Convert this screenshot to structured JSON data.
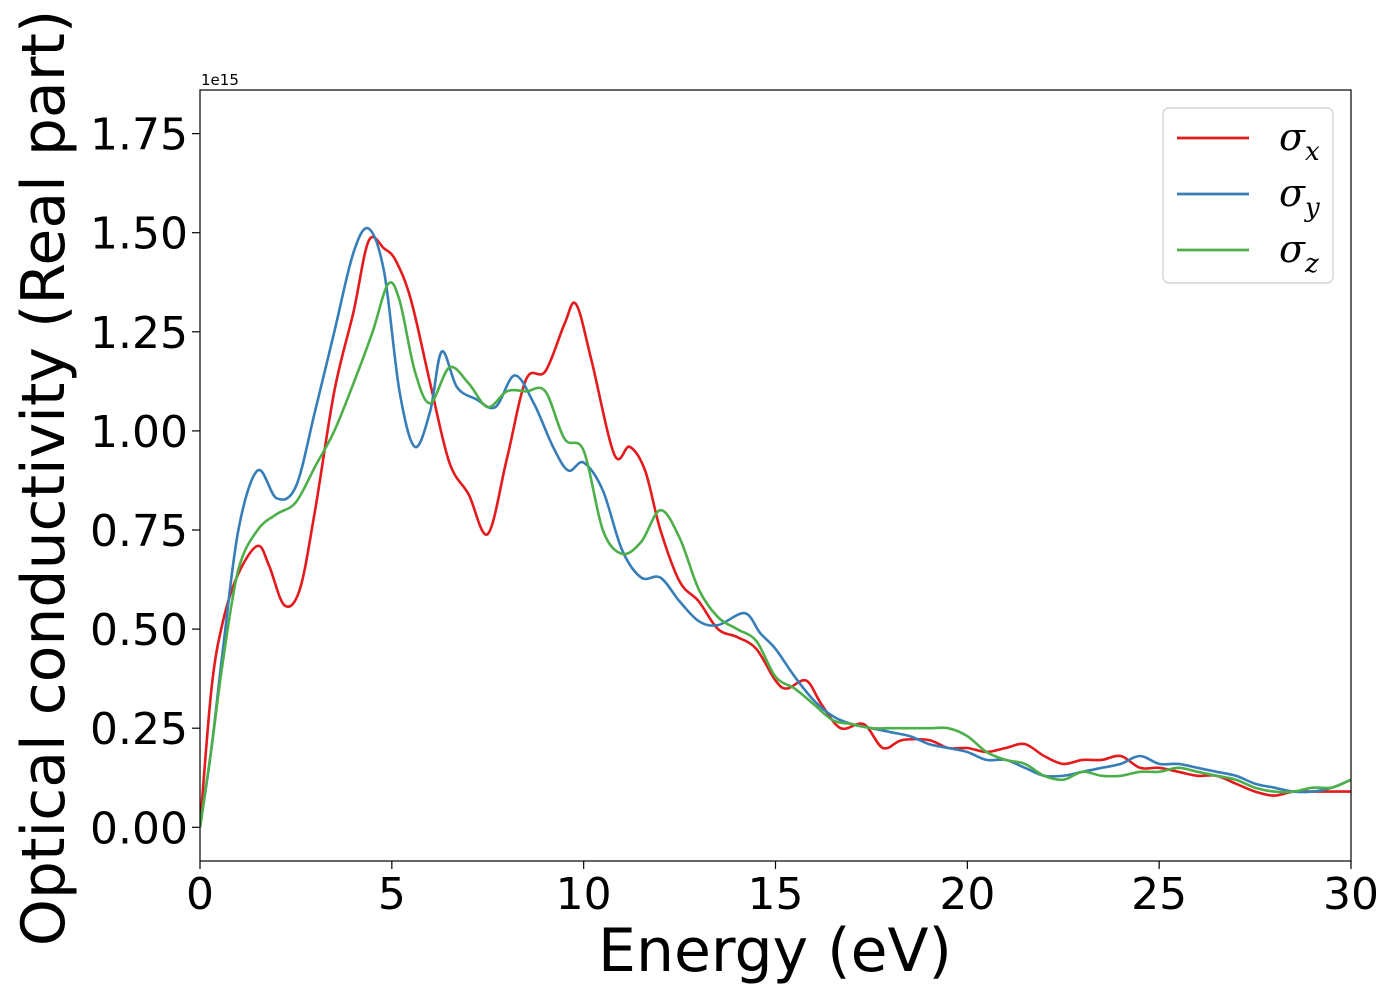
{
  "chart_data": {
    "type": "line",
    "title": "",
    "xlabel": "Energy (eV)",
    "ylabel": "Optical conductivity (Real part)",
    "y_offset_label": "1e15",
    "xlim": [
      0,
      30
    ],
    "ylim": [
      -0.085,
      1.86
    ],
    "xticks": [
      0,
      5,
      10,
      15,
      20,
      25,
      30
    ],
    "xtick_labels": [
      "0",
      "5",
      "10",
      "15",
      "20",
      "25",
      "30"
    ],
    "yticks": [
      0,
      0.25,
      0.5,
      0.75,
      1.0,
      1.25,
      1.5,
      1.75
    ],
    "ytick_labels": [
      "0.00",
      "0.25",
      "0.50",
      "0.75",
      "1.00",
      "1.25",
      "1.50",
      "1.75"
    ],
    "grid": false,
    "legend": "top-right",
    "series": [
      {
        "name": "σ",
        "subscript": "x",
        "color": "#e41a1c",
        "x": [
          0,
          0.3,
          0.6,
          1.0,
          1.5,
          1.8,
          2.2,
          2.6,
          3.0,
          3.5,
          4.0,
          4.4,
          4.8,
          5.1,
          5.5,
          6.0,
          6.5,
          7.0,
          7.5,
          8.0,
          8.5,
          9.0,
          9.5,
          9.8,
          10.2,
          10.8,
          11.2,
          11.6,
          12.0,
          12.5,
          13.0,
          13.5,
          14.0,
          14.5,
          15.0,
          15.3,
          15.8,
          16.2,
          16.7,
          17.3,
          17.8,
          18.3,
          19.0,
          19.5,
          20.0,
          20.5,
          21.0,
          21.5,
          22.0,
          22.5,
          23.0,
          23.5,
          24.0,
          24.5,
          25.0,
          25.5,
          26.0,
          26.5,
          27.0,
          27.5,
          28.0,
          28.5,
          29.0,
          29.5,
          30.0
        ],
        "y": [
          0.0,
          0.35,
          0.52,
          0.64,
          0.71,
          0.66,
          0.56,
          0.6,
          0.8,
          1.1,
          1.3,
          1.48,
          1.46,
          1.43,
          1.33,
          1.12,
          0.92,
          0.84,
          0.74,
          0.93,
          1.13,
          1.15,
          1.27,
          1.32,
          1.18,
          0.94,
          0.96,
          0.9,
          0.75,
          0.62,
          0.57,
          0.5,
          0.48,
          0.45,
          0.37,
          0.35,
          0.37,
          0.31,
          0.25,
          0.26,
          0.2,
          0.22,
          0.22,
          0.2,
          0.2,
          0.19,
          0.2,
          0.21,
          0.18,
          0.16,
          0.17,
          0.17,
          0.18,
          0.15,
          0.15,
          0.14,
          0.13,
          0.13,
          0.11,
          0.09,
          0.08,
          0.09,
          0.09,
          0.09,
          0.09
        ]
      },
      {
        "name": "σ",
        "subscript": "y",
        "color": "#377eb8",
        "x": [
          0,
          0.3,
          0.6,
          1.0,
          1.5,
          2.0,
          2.5,
          3.0,
          3.5,
          4.0,
          4.4,
          4.8,
          5.2,
          5.6,
          6.0,
          6.3,
          6.7,
          7.2,
          7.7,
          8.2,
          8.7,
          9.2,
          9.6,
          10.0,
          10.5,
          11.0,
          11.5,
          12.0,
          12.5,
          13.0,
          13.5,
          14.2,
          14.6,
          15.0,
          15.5,
          16.0,
          16.5,
          17.0,
          17.5,
          18.0,
          18.5,
          19.0,
          19.5,
          20.0,
          20.5,
          21.0,
          21.5,
          22.0,
          22.5,
          23.0,
          23.5,
          24.0,
          24.5,
          25.0,
          25.5,
          26.0,
          26.5,
          27.0,
          27.5,
          28.0,
          28.5,
          29.0,
          29.5,
          30.0
        ],
        "y": [
          0.0,
          0.2,
          0.45,
          0.75,
          0.9,
          0.83,
          0.86,
          1.05,
          1.25,
          1.45,
          1.51,
          1.4,
          1.1,
          0.96,
          1.05,
          1.2,
          1.11,
          1.08,
          1.06,
          1.14,
          1.07,
          0.96,
          0.9,
          0.92,
          0.85,
          0.7,
          0.63,
          0.63,
          0.57,
          0.52,
          0.51,
          0.54,
          0.49,
          0.45,
          0.38,
          0.32,
          0.28,
          0.26,
          0.25,
          0.24,
          0.23,
          0.21,
          0.2,
          0.19,
          0.17,
          0.17,
          0.15,
          0.13,
          0.13,
          0.14,
          0.15,
          0.16,
          0.18,
          0.16,
          0.16,
          0.15,
          0.14,
          0.13,
          0.11,
          0.1,
          0.09,
          0.09,
          0.1,
          0.12
        ]
      },
      {
        "name": "σ",
        "subscript": "z",
        "color": "#4daf4a",
        "x": [
          0,
          0.3,
          0.6,
          1.0,
          1.5,
          2.0,
          2.5,
          3.0,
          3.5,
          4.0,
          4.5,
          4.9,
          5.2,
          5.6,
          6.0,
          6.5,
          7.0,
          7.5,
          8.0,
          8.5,
          9.0,
          9.5,
          10.0,
          10.5,
          11.0,
          11.5,
          12.0,
          12.5,
          13.0,
          13.5,
          14.0,
          14.5,
          15.0,
          15.5,
          16.0,
          16.5,
          17.0,
          17.5,
          18.0,
          18.5,
          19.0,
          19.5,
          20.0,
          20.5,
          21.0,
          21.5,
          22.0,
          22.5,
          23.0,
          23.5,
          24.0,
          24.5,
          25.0,
          25.5,
          26.0,
          26.5,
          27.0,
          27.5,
          28.0,
          28.5,
          29.0,
          29.5,
          30.0
        ],
        "y": [
          0.0,
          0.2,
          0.42,
          0.65,
          0.75,
          0.79,
          0.82,
          0.91,
          1.0,
          1.12,
          1.25,
          1.37,
          1.33,
          1.15,
          1.07,
          1.16,
          1.12,
          1.06,
          1.1,
          1.1,
          1.1,
          0.98,
          0.95,
          0.75,
          0.69,
          0.72,
          0.8,
          0.73,
          0.6,
          0.53,
          0.5,
          0.47,
          0.38,
          0.35,
          0.31,
          0.27,
          0.26,
          0.25,
          0.25,
          0.25,
          0.25,
          0.25,
          0.23,
          0.19,
          0.17,
          0.16,
          0.13,
          0.12,
          0.14,
          0.13,
          0.13,
          0.14,
          0.14,
          0.15,
          0.14,
          0.13,
          0.12,
          0.1,
          0.09,
          0.09,
          0.1,
          0.1,
          0.12
        ]
      }
    ]
  }
}
